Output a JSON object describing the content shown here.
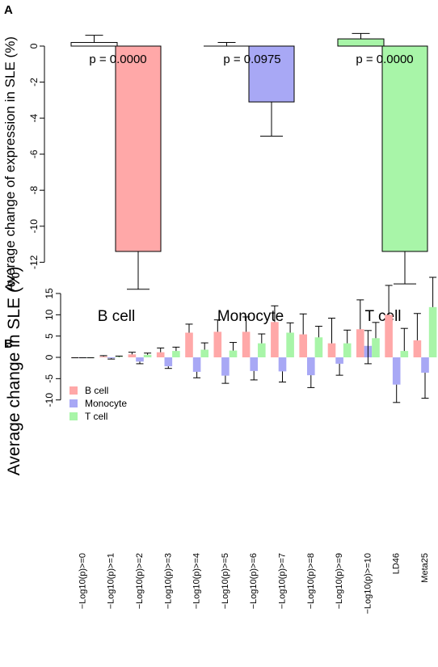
{
  "colors": {
    "b_cell": "#FFA8A8",
    "monocyte": "#A8A8F5",
    "t_cell": "#A8F5A8",
    "ref_bar": "#ffffff",
    "ink": "#000000"
  },
  "chart_data": [
    {
      "panel_label": "A",
      "type": "bar",
      "ylabel": "Average change of expression in SLE (%)",
      "xlabel": "",
      "ylim": [
        -13,
        0
      ],
      "yticks": [
        0,
        -2,
        -4,
        -6,
        -8,
        -10,
        -12
      ],
      "categories": [
        "B cell",
        "Monocyte",
        "T cell"
      ],
      "series": [
        {
          "values": [
            0.2,
            0.0,
            0.4
          ],
          "errors": [
            0.4,
            0.2,
            0.3
          ]
        },
        {
          "values": [
            -11.4,
            -3.1,
            -11.4
          ],
          "errors": [
            2.1,
            1.9,
            1.8
          ]
        }
      ],
      "annotations": [
        "p = 0.0000",
        "p = 0.0975",
        "p = 0.0000"
      ],
      "grid": false,
      "legend": "none"
    },
    {
      "panel_label": "B",
      "type": "bar",
      "ylabel": "Average change in SLE (%)",
      "xlabel": "",
      "ylim": [
        -10,
        15
      ],
      "yticks": [
        -10,
        -5,
        0,
        5,
        10,
        15
      ],
      "categories": [
        "−Log10(p)>=0",
        "−Log10(p)>=1",
        "−Log10(p)>=2",
        "−Log10(p)>=3",
        "−Log10(p)>=4",
        "−Log10(p)>=5",
        "−Log10(p)>=6",
        "−Log10(p)>=7",
        "−Log10(p)>=8",
        "−Log10(p)>=9",
        "−Log10(p)>=10",
        "LD46",
        "Meta25"
      ],
      "series": [
        {
          "name": "B cell",
          "values": [
            -0.1,
            0.2,
            0.7,
            1.2,
            5.8,
            6.0,
            6.0,
            8.3,
            5.4,
            3.3,
            6.6,
            10.0,
            4.0
          ],
          "errors": [
            0.0,
            0.2,
            0.5,
            1.0,
            2.0,
            2.8,
            3.5,
            3.8,
            4.8,
            5.9,
            6.9,
            6.9,
            6.3
          ]
        },
        {
          "name": "Monocyte",
          "values": [
            -0.1,
            -0.2,
            -1.0,
            -2.1,
            -3.4,
            -4.3,
            -3.2,
            -3.3,
            -4.2,
            -1.5,
            2.7,
            -6.4,
            -3.6
          ]
        },
        {
          "name": "T cell",
          "values": [
            -0.1,
            0.1,
            0.6,
            1.5,
            1.8,
            1.6,
            3.3,
            5.8,
            4.7,
            3.3,
            4.5,
            1.5,
            11.8
          ],
          "errors": [
            0.0,
            0.2,
            0.4,
            0.9,
            1.6,
            1.9,
            2.2,
            2.3,
            2.6,
            3.1,
            3.7,
            5.3,
            7.0
          ]
        }
      ],
      "monocyte_error_bottom": [
        -0.1,
        -0.4,
        -1.5,
        -2.6,
        -4.8,
        -6.1,
        -5.3,
        -5.8,
        -7.1,
        -4.2,
        -1.5,
        -10.6,
        -9.6
      ],
      "monocyte_error_top": [
        -0.1,
        -0.2,
        -1.0,
        -2.1,
        -3.4,
        -4.3,
        -3.2,
        -3.3,
        -4.2,
        -1.5,
        6.3,
        -6.4,
        -3.6
      ],
      "grid": false,
      "legend": "top-left"
    }
  ]
}
